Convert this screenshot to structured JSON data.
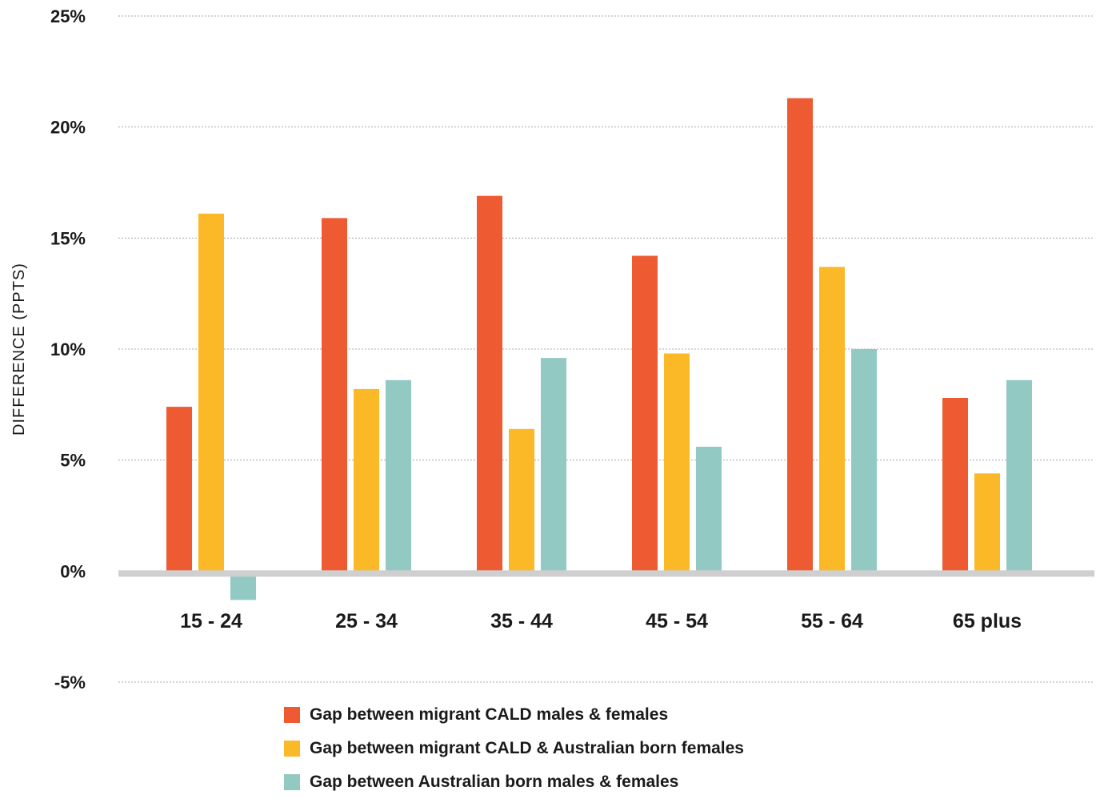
{
  "chart_data": {
    "type": "bar",
    "ylabel": "DIFFERENCE (PPTS)",
    "ylim": [
      -5,
      25
    ],
    "yticks": [
      "25%",
      "20%",
      "15%",
      "10%",
      "5%",
      "0%",
      "-5%"
    ],
    "ytick_values": [
      25,
      20,
      15,
      10,
      5,
      0,
      -5
    ],
    "categories": [
      "15 - 24",
      "25 - 34",
      "35 - 44",
      "45 - 54",
      "55 - 64",
      "65 plus"
    ],
    "series": [
      {
        "name": "Gap between migrant CALD males & females",
        "color": "#ee5a32",
        "values": [
          7.4,
          15.9,
          16.9,
          14.2,
          21.3,
          7.8
        ]
      },
      {
        "name": "Gap between migrant CALD & Australian born females",
        "color": "#fbb827",
        "values": [
          16.1,
          8.2,
          6.4,
          9.8,
          13.7,
          4.4
        ]
      },
      {
        "name": "Gap between Australian born males & females",
        "color": "#92c9c3",
        "values": [
          -1.3,
          8.6,
          9.6,
          5.6,
          10.0,
          8.6
        ]
      }
    ],
    "grid": true,
    "gridline_color": "#aaaaaa",
    "zero_line_color": "#cfcfcf",
    "legend_position": "bottom"
  }
}
